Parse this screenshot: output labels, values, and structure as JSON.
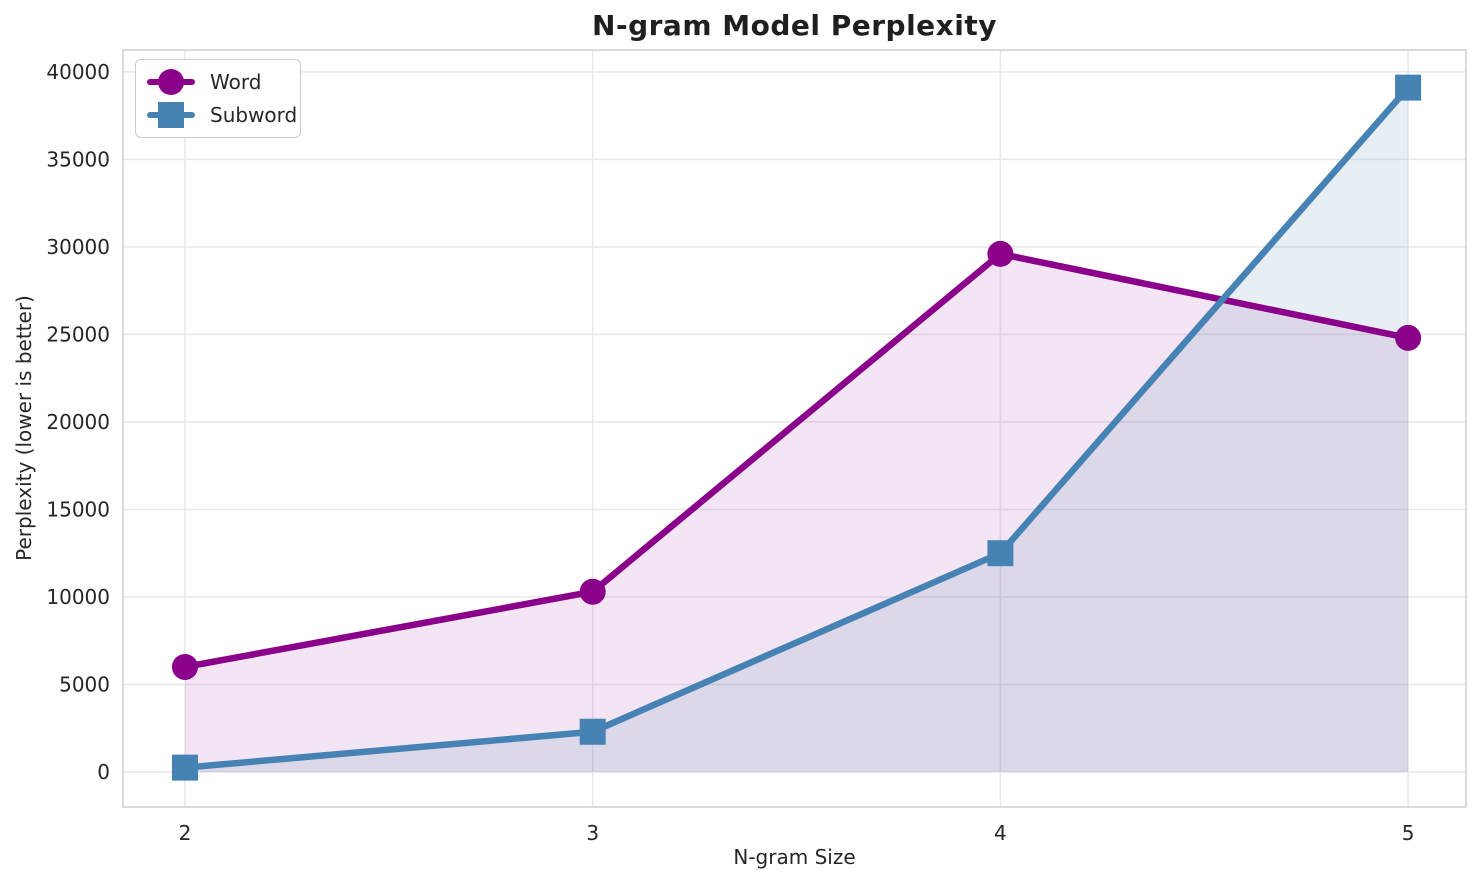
{
  "chart_data": {
    "type": "line",
    "title": "N-gram Model Perplexity",
    "xlabel": "N-gram Size",
    "ylabel": "Perplexity (lower is better)",
    "x": [
      2,
      3,
      4,
      5
    ],
    "series": [
      {
        "name": "Word",
        "marker": "circle",
        "color": "#8B008B",
        "fill_alpha": 0.1,
        "values": [
          6000,
          10300,
          29600,
          24800
        ]
      },
      {
        "name": "Subword",
        "marker": "square",
        "color": "#4682B4",
        "fill_alpha": 0.13,
        "values": [
          250,
          2300,
          12500,
          39100
        ]
      }
    ],
    "xticks": [
      2,
      3,
      4,
      5
    ],
    "yticks": [
      0,
      5000,
      10000,
      15000,
      20000,
      25000,
      30000,
      35000,
      40000
    ],
    "xlim": [
      1.848,
      5.142
    ],
    "ylim": [
      -2000,
      41250
    ],
    "grid": true,
    "fill_to_zero": true,
    "legend_position": "upper-left",
    "colors": {
      "grid": "#e8e8e8",
      "spine": "#d3d3d3",
      "tick_text": "#262626",
      "background": "#ffffff"
    }
  }
}
